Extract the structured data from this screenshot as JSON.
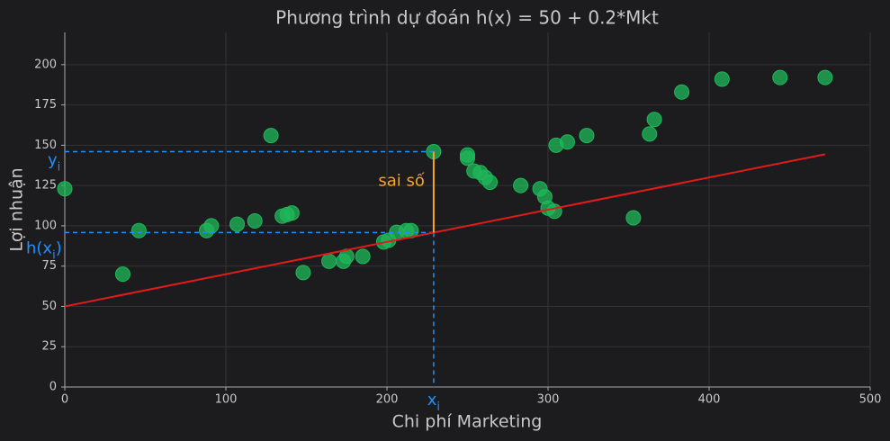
{
  "chart_data": {
    "type": "scatter",
    "title": "Phương trình dự đoán h(x) = 50 + 0.2*Mkt",
    "x_label": "Chi phí Marketing",
    "y_label": "Lợi nhuận",
    "xlim": [
      0,
      500
    ],
    "ylim": [
      0,
      220
    ],
    "xticks": [
      0,
      100,
      200,
      300,
      400,
      500
    ],
    "yticks": [
      0,
      25,
      50,
      75,
      100,
      125,
      150,
      175,
      200
    ],
    "grid": true,
    "color": "#1fb85a",
    "x": [
      0,
      36,
      46,
      88,
      91,
      107,
      118,
      128,
      135,
      138,
      141,
      148,
      164,
      173,
      175,
      185,
      198,
      201,
      206,
      212,
      215,
      229,
      250,
      250,
      254,
      258,
      261,
      264,
      283,
      295,
      298,
      300,
      304,
      305,
      312,
      324,
      353,
      363,
      366,
      383,
      408,
      444,
      472
    ],
    "values": [
      123,
      70,
      97,
      97,
      100,
      101,
      103,
      156,
      106,
      107,
      108,
      71,
      78,
      78,
      81,
      81,
      90,
      91,
      96,
      97,
      97,
      146,
      144,
      142,
      134,
      133,
      130,
      127,
      125,
      123,
      118,
      111,
      109,
      150,
      152,
      156,
      105,
      157,
      166,
      183,
      191,
      192,
      192
    ],
    "line": {
      "color": "#e31a1c",
      "x": [
        0,
        472
      ],
      "values": [
        50,
        144.4
      ]
    },
    "highlight": {
      "x": 229,
      "y": 146,
      "h": 95.8,
      "guide_color": "#1e90ff",
      "error_color": "#f5a623",
      "y_text": "y",
      "h_text": "h(x",
      "h_close": ")",
      "x_text": "x",
      "sub": "i",
      "error_label": "sai số"
    }
  }
}
